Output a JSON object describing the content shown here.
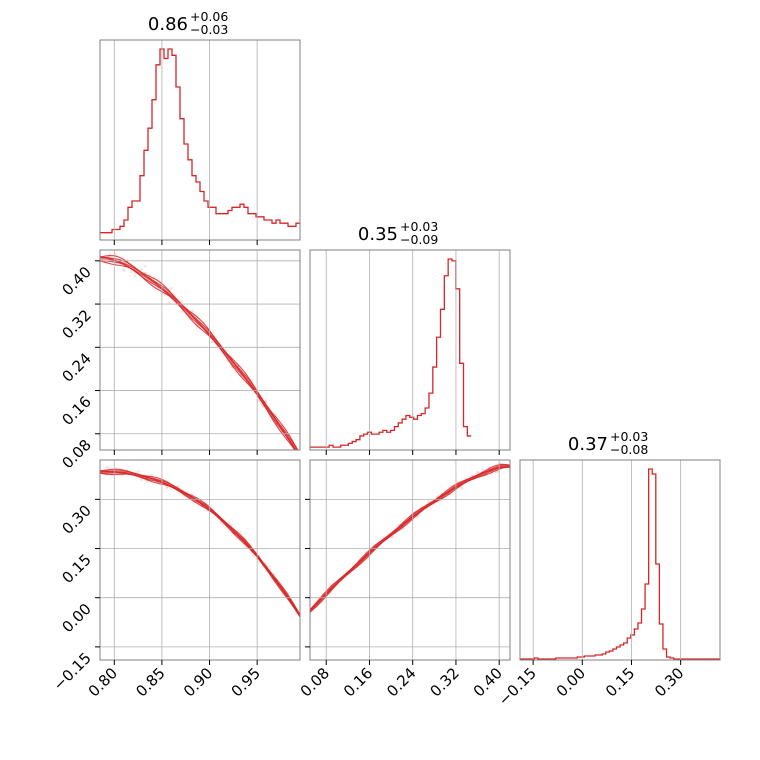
{
  "colors": {
    "series": "#d62728",
    "grid": "#b0b0b0",
    "frame": "#808080"
  },
  "chart_data": {
    "type": "corner",
    "parameters": [
      {
        "title_value": "0.86",
        "title_plus": "+0.06",
        "title_minus": "−0.03",
        "range": [
          0.785,
          0.995
        ],
        "ticks": [
          0.8,
          0.85,
          0.9,
          0.95
        ],
        "tick_labels": [
          "0.80",
          "0.85",
          "0.90",
          "0.95"
        ]
      },
      {
        "title_value": "0.35",
        "title_plus": "+0.03",
        "title_minus": "−0.09",
        "range": [
          0.05,
          0.42
        ],
        "ticks": [
          0.08,
          0.16,
          0.24,
          0.32,
          0.4
        ],
        "tick_labels": [
          "0.08",
          "0.16",
          "0.24",
          "0.32",
          "0.40"
        ]
      },
      {
        "title_value": "0.37",
        "title_plus": "+0.03",
        "title_minus": "−0.08",
        "range": [
          -0.19,
          0.42
        ],
        "ticks": [
          -0.15,
          0.0,
          0.15,
          0.3
        ],
        "tick_labels": [
          "−0.15",
          "0.00",
          "0.15",
          "0.30"
        ]
      }
    ],
    "histograms": [
      {
        "x_start": 0.785,
        "bin_width": 0.0042,
        "counts": [
          2,
          2,
          2,
          3,
          3,
          4,
          6,
          10,
          12,
          12,
          20,
          28,
          35,
          44,
          55,
          60,
          57,
          60,
          58,
          48,
          38,
          30,
          25,
          20,
          18,
          15,
          12,
          10,
          10,
          8,
          8,
          8,
          9,
          10,
          10,
          11,
          10,
          8,
          8,
          7,
          7,
          6,
          6,
          5,
          6,
          5,
          5,
          4,
          4,
          5,
          4
        ]
      },
      {
        "x_start": 0.05,
        "bin_width": 0.0071,
        "counts": [
          1,
          1,
          1,
          1,
          1,
          2,
          1,
          1,
          2,
          2,
          3,
          4,
          5,
          7,
          8,
          9,
          8,
          8,
          9,
          10,
          9,
          10,
          12,
          14,
          16,
          18,
          17,
          16,
          18,
          19,
          22,
          30,
          44,
          60,
          75,
          93,
          102,
          101,
          86,
          46,
          12,
          7
        ]
      },
      {
        "x_start": -0.19,
        "bin_width": 0.0109,
        "counts": [
          0,
          0,
          0,
          0,
          1,
          0,
          0,
          0,
          0,
          0,
          1,
          1,
          1,
          1,
          1,
          1,
          2,
          2,
          3,
          3,
          3,
          4,
          4,
          5,
          7,
          8,
          10,
          12,
          14,
          16,
          21,
          24,
          30,
          36,
          50,
          75,
          190,
          185,
          95,
          35,
          10,
          2,
          1,
          0,
          0,
          0,
          0,
          0,
          0,
          0,
          0,
          0,
          0,
          0,
          0,
          0
        ]
      }
    ],
    "scatter_pairs": [
      {
        "x_param": 0,
        "y_param": 1,
        "trend": "decreasing",
        "dense_region": [
          0.8,
          0.96
        ]
      },
      {
        "x_param": 0,
        "y_param": 2,
        "trend": "decreasing",
        "dense_region": [
          0.8,
          0.96
        ]
      },
      {
        "x_param": 1,
        "y_param": 2,
        "trend": "increasing",
        "dense_region": [
          0.2,
          0.41
        ]
      }
    ],
    "grid": true
  }
}
